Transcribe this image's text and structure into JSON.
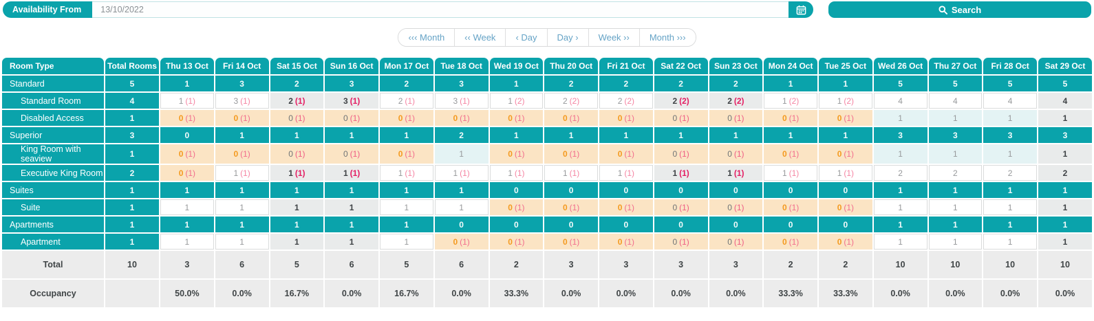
{
  "toolbar": {
    "availability_label": "Availability From",
    "date_value": "13/10/2022",
    "search_label": "Search"
  },
  "nav": {
    "buttons": [
      {
        "name": "prev-month-button",
        "label": "‹‹‹ Month"
      },
      {
        "name": "prev-week-button",
        "label": "‹‹ Week"
      },
      {
        "name": "prev-day-button",
        "label": "‹ Day"
      },
      {
        "name": "next-day-button",
        "label": "Day ›"
      },
      {
        "name": "next-week-button",
        "label": "Week ››"
      },
      {
        "name": "next-month-button",
        "label": "Month ›››"
      }
    ]
  },
  "table": {
    "room_type_header": "Room Type",
    "total_rooms_header": "Total Rooms",
    "date_headers": [
      "Thu 13 Oct",
      "Fri 14 Oct",
      "Sat 15 Oct",
      "Sun 16 Oct",
      "Mon 17 Oct",
      "Tue 18 Oct",
      "Wed 19 Oct",
      "Thu 20 Oct",
      "Fri 21 Oct",
      "Sat 22 Oct",
      "Sun 23 Oct",
      "Mon 24 Oct",
      "Tue 25 Oct",
      "Wed 26 Oct",
      "Thu 27 Oct",
      "Fri 28 Oct",
      "Sat 29 Oct"
    ],
    "rows": [
      {
        "label": "Standard",
        "kind": "group",
        "total": "5",
        "values": [
          "1",
          "3",
          "2",
          "3",
          "2",
          "3",
          "1",
          "2",
          "2",
          "2",
          "2",
          "1",
          "1",
          "5",
          "5",
          "5",
          "5"
        ]
      },
      {
        "label": "Standard Room",
        "kind": "sub",
        "total": "4",
        "cells": [
          {
            "v": "1",
            "p": "1",
            "s": "w"
          },
          {
            "v": "3",
            "p": "1",
            "s": "w"
          },
          {
            "v": "2",
            "p": "1",
            "s": "g"
          },
          {
            "v": "3",
            "p": "1",
            "s": "g"
          },
          {
            "v": "2",
            "p": "1",
            "s": "w"
          },
          {
            "v": "3",
            "p": "1",
            "s": "w"
          },
          {
            "v": "1",
            "p": "2",
            "s": "w"
          },
          {
            "v": "2",
            "p": "2",
            "s": "w"
          },
          {
            "v": "2",
            "p": "2",
            "s": "w"
          },
          {
            "v": "2",
            "p": "2",
            "s": "g"
          },
          {
            "v": "2",
            "p": "2",
            "s": "g"
          },
          {
            "v": "1",
            "p": "2",
            "s": "w"
          },
          {
            "v": "1",
            "p": "2",
            "s": "w"
          },
          {
            "v": "4",
            "s": "w"
          },
          {
            "v": "4",
            "s": "w"
          },
          {
            "v": "4",
            "s": "w"
          },
          {
            "v": "4",
            "s": "g"
          }
        ]
      },
      {
        "label": "Disabled Access",
        "kind": "sub",
        "total": "1",
        "cells": [
          {
            "v": "0",
            "p": "1",
            "s": "p"
          },
          {
            "v": "0",
            "p": "1",
            "s": "p"
          },
          {
            "v": "0",
            "p": "1",
            "s": "pg"
          },
          {
            "v": "0",
            "p": "1",
            "s": "pg"
          },
          {
            "v": "0",
            "p": "1",
            "s": "p"
          },
          {
            "v": "0",
            "p": "1",
            "s": "p"
          },
          {
            "v": "0",
            "p": "1",
            "s": "p"
          },
          {
            "v": "0",
            "p": "1",
            "s": "p"
          },
          {
            "v": "0",
            "p": "1",
            "s": "p"
          },
          {
            "v": "0",
            "p": "1",
            "s": "pg"
          },
          {
            "v": "0",
            "p": "1",
            "s": "pg"
          },
          {
            "v": "0",
            "p": "1",
            "s": "p"
          },
          {
            "v": "0",
            "p": "1",
            "s": "p"
          },
          {
            "v": "1",
            "s": "c"
          },
          {
            "v": "1",
            "s": "c"
          },
          {
            "v": "1",
            "s": "c"
          },
          {
            "v": "1",
            "s": "g"
          }
        ]
      },
      {
        "label": "Superior",
        "kind": "group",
        "total": "3",
        "values": [
          "0",
          "1",
          "1",
          "1",
          "1",
          "2",
          "1",
          "1",
          "1",
          "1",
          "1",
          "1",
          "1",
          "3",
          "3",
          "3",
          "3"
        ]
      },
      {
        "label": "King Room with seaview",
        "kind": "sub",
        "total": "1",
        "cells": [
          {
            "v": "0",
            "p": "1",
            "s": "p"
          },
          {
            "v": "0",
            "p": "1",
            "s": "p"
          },
          {
            "v": "0",
            "p": "1",
            "s": "pg"
          },
          {
            "v": "0",
            "p": "1",
            "s": "pg"
          },
          {
            "v": "0",
            "p": "1",
            "s": "p"
          },
          {
            "v": "1",
            "s": "c"
          },
          {
            "v": "0",
            "p": "1",
            "s": "p"
          },
          {
            "v": "0",
            "p": "1",
            "s": "p"
          },
          {
            "v": "0",
            "p": "1",
            "s": "p"
          },
          {
            "v": "0",
            "p": "1",
            "s": "pg"
          },
          {
            "v": "0",
            "p": "1",
            "s": "pg"
          },
          {
            "v": "0",
            "p": "1",
            "s": "p"
          },
          {
            "v": "0",
            "p": "1",
            "s": "p"
          },
          {
            "v": "1",
            "s": "c"
          },
          {
            "v": "1",
            "s": "c"
          },
          {
            "v": "1",
            "s": "c"
          },
          {
            "v": "1",
            "s": "g"
          }
        ]
      },
      {
        "label": "Executive King Room",
        "kind": "sub",
        "total": "2",
        "cells": [
          {
            "v": "0",
            "p": "1",
            "s": "p"
          },
          {
            "v": "1",
            "p": "1",
            "s": "w"
          },
          {
            "v": "1",
            "p": "1",
            "s": "g"
          },
          {
            "v": "1",
            "p": "1",
            "s": "g"
          },
          {
            "v": "1",
            "p": "1",
            "s": "w"
          },
          {
            "v": "1",
            "p": "1",
            "s": "w"
          },
          {
            "v": "1",
            "p": "1",
            "s": "w"
          },
          {
            "v": "1",
            "p": "1",
            "s": "w"
          },
          {
            "v": "1",
            "p": "1",
            "s": "w"
          },
          {
            "v": "1",
            "p": "1",
            "s": "g"
          },
          {
            "v": "1",
            "p": "1",
            "s": "g"
          },
          {
            "v": "1",
            "p": "1",
            "s": "w"
          },
          {
            "v": "1",
            "p": "1",
            "s": "w"
          },
          {
            "v": "2",
            "s": "w"
          },
          {
            "v": "2",
            "s": "w"
          },
          {
            "v": "2",
            "s": "w"
          },
          {
            "v": "2",
            "s": "g"
          }
        ]
      },
      {
        "label": "Suites",
        "kind": "group",
        "total": "1",
        "values": [
          "1",
          "1",
          "1",
          "1",
          "1",
          "1",
          "0",
          "0",
          "0",
          "0",
          "0",
          "0",
          "0",
          "1",
          "1",
          "1",
          "1"
        ]
      },
      {
        "label": "Suite",
        "kind": "sub",
        "total": "1",
        "cells": [
          {
            "v": "1",
            "s": "w"
          },
          {
            "v": "1",
            "s": "w"
          },
          {
            "v": "1",
            "s": "g"
          },
          {
            "v": "1",
            "s": "g"
          },
          {
            "v": "1",
            "s": "w"
          },
          {
            "v": "1",
            "s": "w"
          },
          {
            "v": "0",
            "p": "1",
            "s": "p"
          },
          {
            "v": "0",
            "p": "1",
            "s": "p"
          },
          {
            "v": "0",
            "p": "1",
            "s": "p"
          },
          {
            "v": "0",
            "p": "1",
            "s": "pg"
          },
          {
            "v": "0",
            "p": "1",
            "s": "pg"
          },
          {
            "v": "0",
            "p": "1",
            "s": "p"
          },
          {
            "v": "0",
            "p": "1",
            "s": "p"
          },
          {
            "v": "1",
            "s": "w"
          },
          {
            "v": "1",
            "s": "w"
          },
          {
            "v": "1",
            "s": "w"
          },
          {
            "v": "1",
            "s": "g"
          }
        ]
      },
      {
        "label": "Apartments",
        "kind": "group",
        "total": "1",
        "values": [
          "1",
          "1",
          "1",
          "1",
          "1",
          "0",
          "0",
          "0",
          "0",
          "0",
          "0",
          "0",
          "0",
          "1",
          "1",
          "1",
          "1"
        ]
      },
      {
        "label": "Apartment",
        "kind": "sub",
        "total": "1",
        "cells": [
          {
            "v": "1",
            "s": "w"
          },
          {
            "v": "1",
            "s": "w"
          },
          {
            "v": "1",
            "s": "g"
          },
          {
            "v": "1",
            "s": "g"
          },
          {
            "v": "1",
            "s": "w"
          },
          {
            "v": "0",
            "p": "1",
            "s": "p"
          },
          {
            "v": "0",
            "p": "1",
            "s": "p"
          },
          {
            "v": "0",
            "p": "1",
            "s": "p"
          },
          {
            "v": "0",
            "p": "1",
            "s": "p"
          },
          {
            "v": "0",
            "p": "1",
            "s": "pg"
          },
          {
            "v": "0",
            "p": "1",
            "s": "pg"
          },
          {
            "v": "0",
            "p": "1",
            "s": "p"
          },
          {
            "v": "0",
            "p": "1",
            "s": "p"
          },
          {
            "v": "1",
            "s": "w"
          },
          {
            "v": "1",
            "s": "w"
          },
          {
            "v": "1",
            "s": "w"
          },
          {
            "v": "1",
            "s": "g"
          }
        ]
      }
    ],
    "total_row": {
      "label": "Total",
      "total": "10",
      "values": [
        "3",
        "6",
        "5",
        "6",
        "5",
        "6",
        "2",
        "3",
        "3",
        "3",
        "3",
        "2",
        "2",
        "10",
        "10",
        "10",
        "10"
      ]
    },
    "occupancy_row": {
      "label": "Occupancy",
      "total": "",
      "values": [
        "50.0%",
        "0.0%",
        "16.7%",
        "0.0%",
        "16.7%",
        "0.0%",
        "33.3%",
        "0.0%",
        "0.0%",
        "0.0%",
        "0.0%",
        "33.3%",
        "33.3%",
        "0.0%",
        "0.0%",
        "0.0%",
        "0.0%"
      ]
    }
  },
  "colors": {
    "teal": "#0aa3ab",
    "peach_bg": "#fbe4c4",
    "weekend_bg": "#e9ebeb",
    "cyan_bg": "#e4f3f4",
    "orange_text": "#f49a1f",
    "pink_text": "#f585a3",
    "crimson_text": "#e41e63",
    "nav_text": "#65a3c6",
    "summary_bg": "#ececec"
  }
}
